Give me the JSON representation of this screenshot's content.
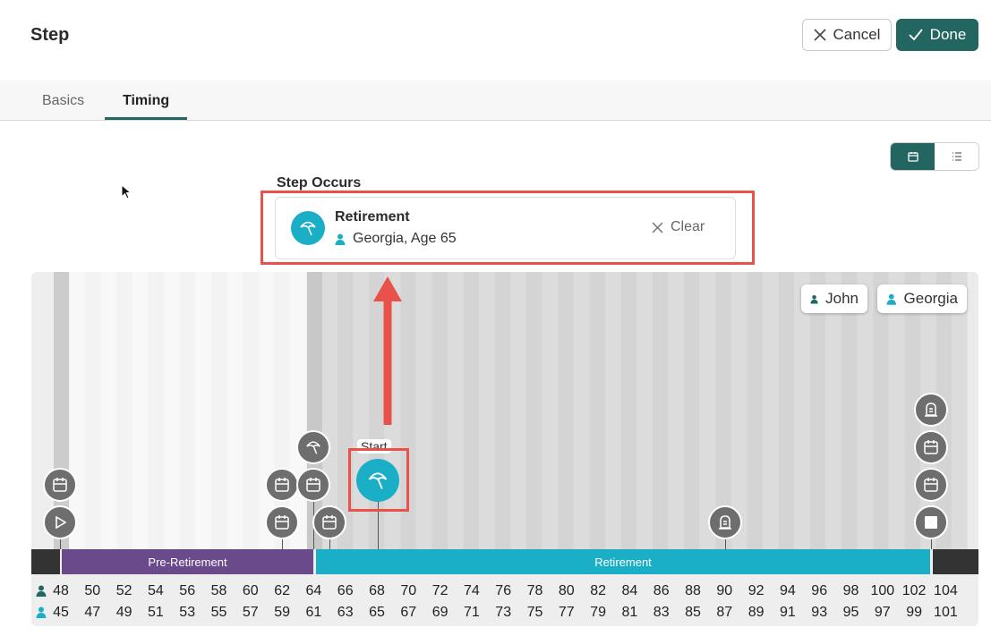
{
  "header": {
    "title": "Step",
    "cancel_label": "Cancel",
    "done_label": "Done"
  },
  "tabs": [
    {
      "label": "Basics"
    },
    {
      "label": "Timing",
      "active": true
    }
  ],
  "view_toggle": {
    "options": [
      "calendar-icon",
      "list-icon"
    ],
    "selected": "calendar-icon"
  },
  "step_occurs": {
    "label": "Step Occurs",
    "event_title": "Retirement",
    "event_person": "Georgia, Age 65",
    "clear_label": "Clear"
  },
  "timeline": {
    "people": [
      {
        "name": "John",
        "color": "#236560"
      },
      {
        "name": "Georgia",
        "color": "#1aaec7"
      }
    ],
    "phases": [
      {
        "label": "Pre-Retirement",
        "color": "#6b4a8c"
      },
      {
        "label": "Retirement",
        "color": "#1aaec7"
      }
    ],
    "john_ages": [
      "48",
      "50",
      "52",
      "54",
      "56",
      "58",
      "60",
      "62",
      "64",
      "66",
      "68",
      "70",
      "72",
      "74",
      "76",
      "78",
      "80",
      "82",
      "84",
      "86",
      "88",
      "90",
      "92",
      "94",
      "96",
      "98",
      "100",
      "102",
      "104"
    ],
    "georgia_ages": [
      "45",
      "47",
      "49",
      "51",
      "53",
      "55",
      "57",
      "59",
      "61",
      "63",
      "65",
      "67",
      "69",
      "71",
      "73",
      "75",
      "77",
      "79",
      "81",
      "83",
      "85",
      "87",
      "89",
      "91",
      "93",
      "95",
      "97",
      "99",
      "101"
    ],
    "start_label": "Start",
    "colors": {
      "accent": "#236560",
      "event_teal": "#1aaec7",
      "event_gray": "#6e6e6e",
      "highlight": "#e8524a"
    }
  }
}
